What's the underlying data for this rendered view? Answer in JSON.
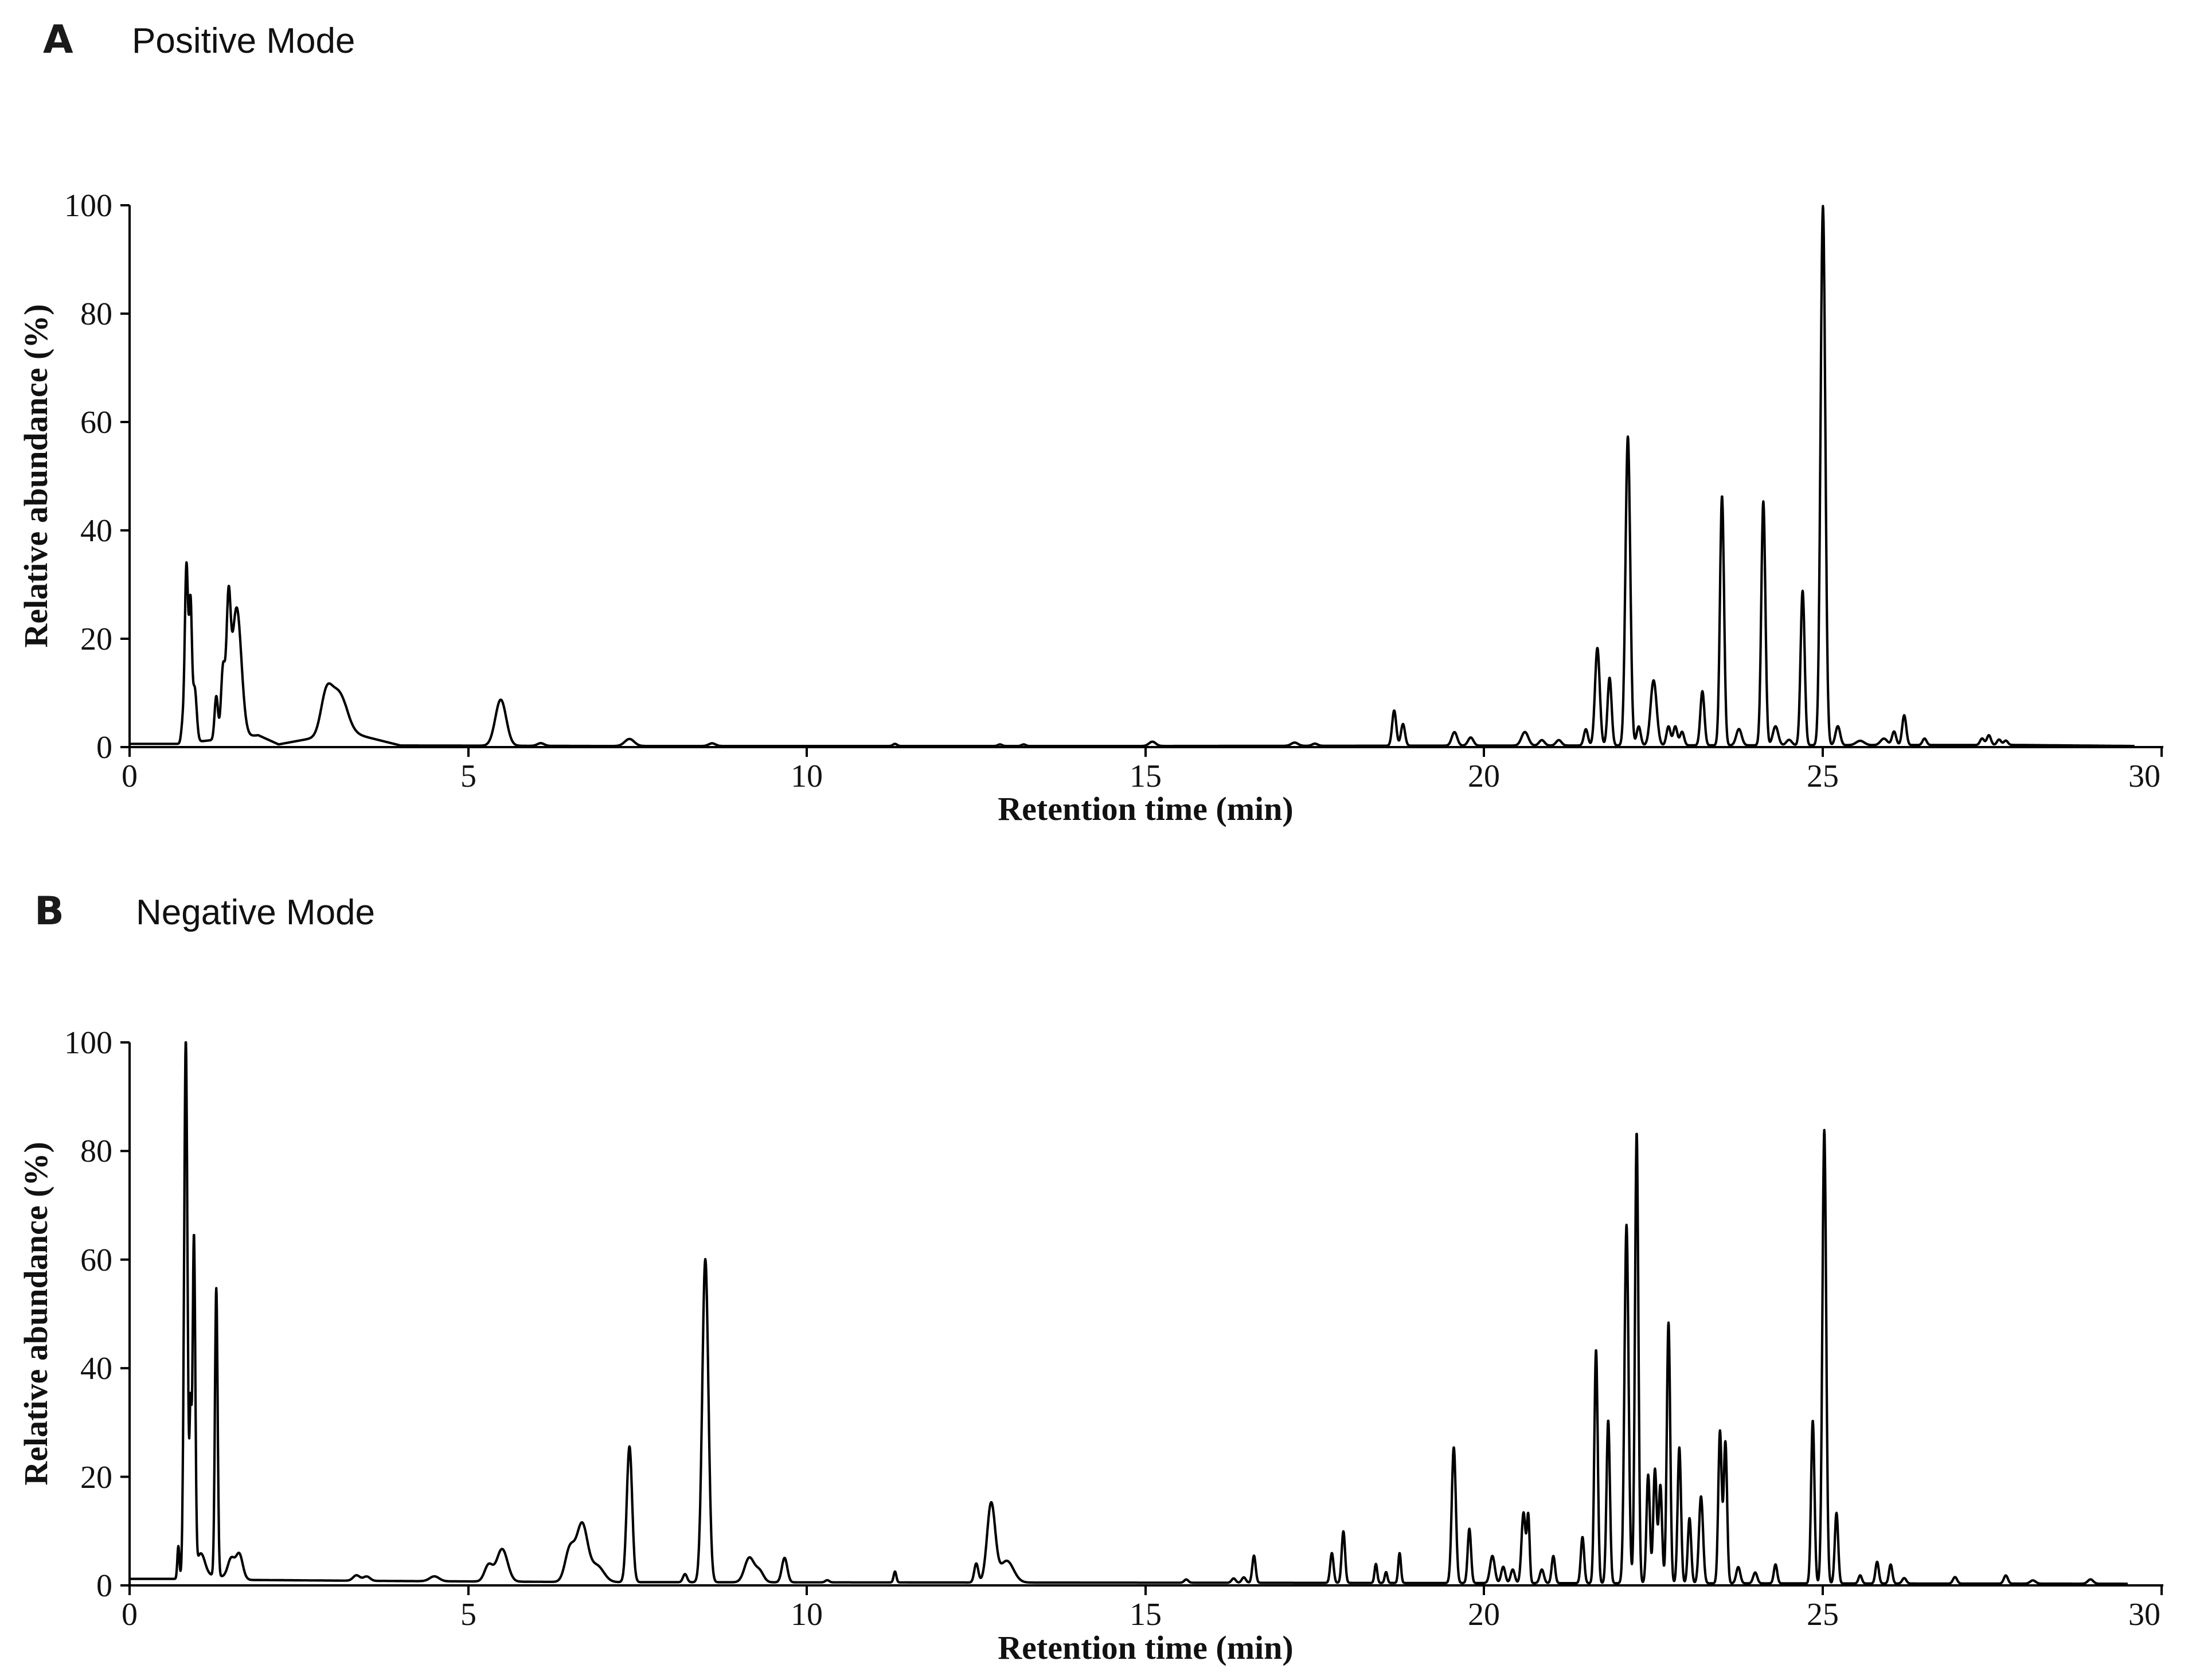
{
  "chart_data": [
    {
      "type": "line",
      "panel_label": "A",
      "title": "Positive Mode",
      "xlabel": "Retention time (min)",
      "ylabel": "Relative abundance (%)",
      "xlim": [
        0,
        30
      ],
      "ylim": [
        0,
        100
      ],
      "xticks": [
        "0",
        "5",
        "10",
        "15",
        "20",
        "25",
        "30"
      ],
      "yticks": [
        "0",
        "20",
        "40",
        "60",
        "80",
        "100"
      ],
      "grid": false,
      "legend": "none",
      "x_end": 29.6,
      "baseline": [
        [
          0,
          0.6
        ],
        [
          0.7,
          0.6
        ],
        [
          1.9,
          2.2
        ],
        [
          2.2,
          0.5
        ],
        [
          3.2,
          2.8
        ],
        [
          4.0,
          0.3
        ],
        [
          7.0,
          0.2
        ],
        [
          15.0,
          0.2
        ],
        [
          27.8,
          0.4
        ],
        [
          29.6,
          0.2
        ]
      ],
      "peaks": [
        [
          0.78,
          3,
          0.02
        ],
        [
          0.84,
          33,
          0.025
        ],
        [
          0.9,
          24,
          0.02
        ],
        [
          0.96,
          10,
          0.03
        ],
        [
          1.28,
          8,
          0.025
        ],
        [
          1.38,
          13,
          0.03
        ],
        [
          1.46,
          22,
          0.03
        ],
        [
          1.58,
          24,
          0.07
        ],
        [
          2.9,
          6.5,
          0.08
        ],
        [
          3.08,
          7.5,
          0.12
        ],
        [
          5.48,
          8.5,
          0.08
        ],
        [
          6.07,
          0.5,
          0.05
        ],
        [
          7.38,
          1.3,
          0.07
        ],
        [
          8.6,
          0.5,
          0.05
        ],
        [
          11.3,
          0.4,
          0.03
        ],
        [
          12.85,
          0.3,
          0.03
        ],
        [
          13.2,
          0.3,
          0.03
        ],
        [
          15.1,
          0.8,
          0.05
        ],
        [
          17.2,
          0.6,
          0.05
        ],
        [
          17.5,
          0.4,
          0.04
        ],
        [
          18.67,
          6.5,
          0.03
        ],
        [
          18.8,
          4,
          0.03
        ],
        [
          19.56,
          2.5,
          0.04
        ],
        [
          19.8,
          1.5,
          0.04
        ],
        [
          20.6,
          2.5,
          0.05
        ],
        [
          20.85,
          1,
          0.04
        ],
        [
          21.1,
          1,
          0.04
        ],
        [
          21.5,
          3,
          0.03
        ],
        [
          21.67,
          18,
          0.035
        ],
        [
          21.85,
          12.5,
          0.03
        ],
        [
          22.12,
          57,
          0.035
        ],
        [
          22.28,
          3.5,
          0.03
        ],
        [
          22.5,
          12,
          0.045
        ],
        [
          22.72,
          3.5,
          0.03
        ],
        [
          22.82,
          3.5,
          0.03
        ],
        [
          22.92,
          2.5,
          0.03
        ],
        [
          23.22,
          10,
          0.03
        ],
        [
          23.51,
          46,
          0.03
        ],
        [
          23.76,
          3,
          0.04
        ],
        [
          24.12,
          45,
          0.03
        ],
        [
          24.3,
          3.5,
          0.04
        ],
        [
          24.5,
          1,
          0.04
        ],
        [
          24.7,
          28.5,
          0.03
        ],
        [
          25.0,
          99.5,
          0.035
        ],
        [
          25.22,
          3.5,
          0.035
        ],
        [
          25.55,
          0.8,
          0.06
        ],
        [
          25.9,
          1.2,
          0.05
        ],
        [
          26.05,
          2.5,
          0.03
        ],
        [
          26.2,
          5.5,
          0.03
        ],
        [
          26.5,
          1.2,
          0.03
        ],
        [
          27.35,
          1.2,
          0.03
        ],
        [
          27.45,
          1.8,
          0.03
        ],
        [
          27.6,
          1,
          0.03
        ],
        [
          27.7,
          0.8,
          0.03
        ]
      ]
    },
    {
      "type": "line",
      "panel_label": "B",
      "title": "Negative Mode",
      "xlabel": "Retention time (min)",
      "ylabel": "Relative abundance (%)",
      "xlim": [
        0,
        30
      ],
      "ylim": [
        0,
        100
      ],
      "xticks": [
        "0",
        "5",
        "10",
        "15",
        "20",
        "25",
        "30"
      ],
      "yticks": [
        "0",
        "20",
        "40",
        "60",
        "80",
        "100"
      ],
      "grid": false,
      "legend": "none",
      "x_end": 29.5,
      "baseline": [
        [
          0,
          1.2
        ],
        [
          0.7,
          1.2
        ],
        [
          1.1,
          2.0
        ],
        [
          1.8,
          1.0
        ],
        [
          4.0,
          0.8
        ],
        [
          7.0,
          0.6
        ],
        [
          15.0,
          0.5
        ],
        [
          29.5,
          0.3
        ]
      ],
      "peaks": [
        [
          0.72,
          6,
          0.015
        ],
        [
          0.83,
          99,
          0.025
        ],
        [
          0.9,
          29,
          0.015
        ],
        [
          0.95,
          62,
          0.02
        ],
        [
          1.05,
          4,
          0.06
        ],
        [
          1.28,
          53,
          0.02
        ],
        [
          1.5,
          3.5,
          0.05
        ],
        [
          1.62,
          4.5,
          0.05
        ],
        [
          3.35,
          1,
          0.05
        ],
        [
          3.5,
          0.8,
          0.05
        ],
        [
          4.5,
          0.9,
          0.07
        ],
        [
          5.3,
          3,
          0.06
        ],
        [
          5.5,
          6,
          0.08
        ],
        [
          6.5,
          6,
          0.07
        ],
        [
          6.68,
          10.5,
          0.08
        ],
        [
          6.9,
          3,
          0.1
        ],
        [
          7.38,
          25,
          0.04
        ],
        [
          8.2,
          1.5,
          0.03
        ],
        [
          8.5,
          59.5,
          0.045
        ],
        [
          9.15,
          4.5,
          0.07
        ],
        [
          9.3,
          2,
          0.06
        ],
        [
          9.67,
          4.5,
          0.04
        ],
        [
          10.3,
          0.4,
          0.03
        ],
        [
          11.3,
          2,
          0.02
        ],
        [
          12.5,
          3.5,
          0.03
        ],
        [
          12.72,
          14.5,
          0.06
        ],
        [
          12.95,
          4,
          0.1
        ],
        [
          15.6,
          0.6,
          0.03
        ],
        [
          16.3,
          0.8,
          0.03
        ],
        [
          16.45,
          1,
          0.03
        ],
        [
          16.6,
          5,
          0.025
        ],
        [
          17.75,
          5.5,
          0.025
        ],
        [
          17.92,
          9.5,
          0.025
        ],
        [
          18.4,
          3.5,
          0.02
        ],
        [
          18.55,
          2,
          0.02
        ],
        [
          18.75,
          5.5,
          0.02
        ],
        [
          19.55,
          25,
          0.03
        ],
        [
          19.78,
          10,
          0.025
        ],
        [
          20.12,
          5,
          0.035
        ],
        [
          20.28,
          3,
          0.03
        ],
        [
          20.42,
          2.5,
          0.03
        ],
        [
          20.58,
          13,
          0.03
        ],
        [
          20.65,
          12,
          0.02
        ],
        [
          20.85,
          2.5,
          0.03
        ],
        [
          21.02,
          5,
          0.025
        ],
        [
          21.45,
          8.5,
          0.025
        ],
        [
          21.65,
          43,
          0.025
        ],
        [
          21.83,
          30,
          0.025
        ],
        [
          22.1,
          66,
          0.03
        ],
        [
          22.25,
          83,
          0.025
        ],
        [
          22.42,
          20,
          0.025
        ],
        [
          22.52,
          21,
          0.025
        ],
        [
          22.6,
          18,
          0.025
        ],
        [
          22.72,
          48,
          0.025
        ],
        [
          22.88,
          25,
          0.025
        ],
        [
          23.03,
          12,
          0.025
        ],
        [
          23.2,
          16,
          0.03
        ],
        [
          23.48,
          28,
          0.025
        ],
        [
          23.56,
          26,
          0.025
        ],
        [
          23.75,
          3,
          0.03
        ],
        [
          24.0,
          2,
          0.03
        ],
        [
          24.3,
          3.5,
          0.025
        ],
        [
          24.85,
          30,
          0.025
        ],
        [
          25.02,
          83.5,
          0.028
        ],
        [
          25.2,
          13,
          0.025
        ],
        [
          25.55,
          1.5,
          0.025
        ],
        [
          25.8,
          4,
          0.025
        ],
        [
          26.0,
          3.5,
          0.025
        ],
        [
          26.2,
          1,
          0.03
        ],
        [
          26.95,
          1.2,
          0.03
        ],
        [
          27.7,
          1.5,
          0.03
        ],
        [
          28.1,
          0.6,
          0.04
        ],
        [
          28.95,
          0.8,
          0.04
        ]
      ]
    }
  ]
}
